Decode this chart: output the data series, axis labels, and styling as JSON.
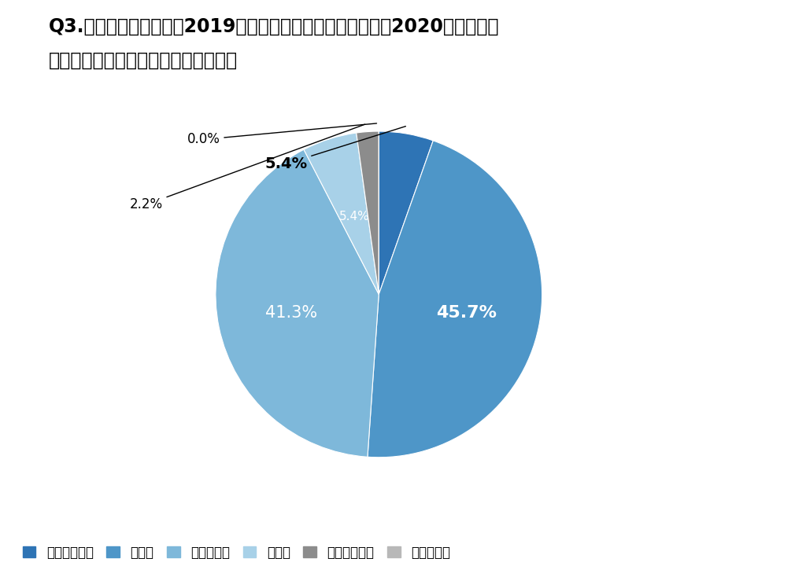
{
  "title_line1": "Q3.新型コロナ流行前（2019年以前）と新型コロナ流行後（2020年以降）を",
  "title_line2": "比べ、受注率に変化はありましたか。",
  "labels": [
    "大きく減った",
    "減った",
    "変わらない",
    "増えた",
    "大きく増えた",
    "わからない"
  ],
  "values": [
    5.4,
    45.7,
    41.3,
    5.4,
    2.2,
    0.0
  ],
  "colors": [
    "#2E74B5",
    "#4E96C8",
    "#7EB8DA",
    "#A8D1E8",
    "#8C8C8C",
    "#B8B8B8"
  ],
  "label_texts": [
    "5.4%",
    "45.7%",
    "41.3%",
    "5.4%",
    "2.2%",
    "0.0%"
  ],
  "background_color": "#FFFFFF",
  "title_fontsize": 17,
  "legend_fontsize": 12
}
